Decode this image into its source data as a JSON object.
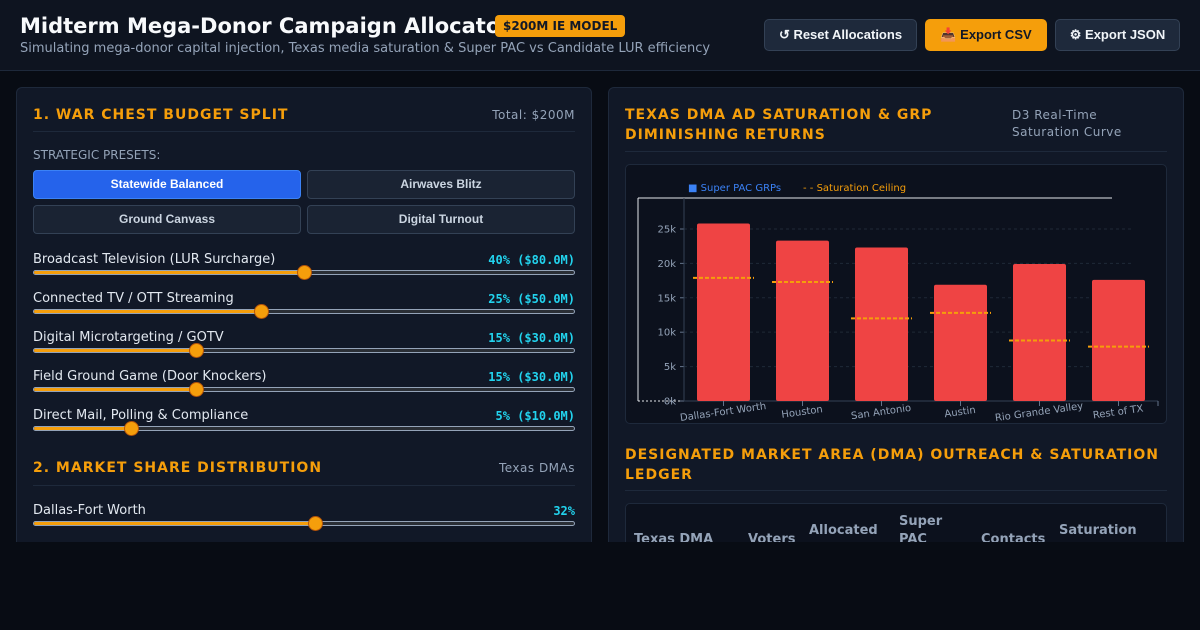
{
  "header": {
    "title": "Midterm Mega-Donor Campaign Allocator",
    "badge": "$200M IE MODEL",
    "subtitle": "Simulating mega-donor capital injection, Texas media saturation & Super PAC vs Candidate LUR efficiency",
    "buttons": {
      "reset": "↺ Reset Allocations",
      "export_csv": "📥 Export CSV",
      "export_json": "⚙ Export JSON"
    }
  },
  "budget": {
    "title": "1. WAR CHEST BUDGET SPLIT",
    "total": "Total: $200M",
    "presets_label": "STRATEGIC PRESETS:",
    "presets": [
      "Statewide Balanced",
      "Airwaves Blitz",
      "Ground Canvass",
      "Digital Turnout"
    ],
    "active_preset": "Statewide Balanced",
    "channels": [
      {
        "label": "Broadcast Television (LUR Surcharge)",
        "value": "40% ($80.0M)",
        "level": 0.5
      },
      {
        "label": "Connected TV / OTT Streaming",
        "value": "25% ($50.0M)",
        "level": 0.42
      },
      {
        "label": "Digital Microtargeting / GOTV",
        "value": "15% ($30.0M)",
        "level": 0.3
      },
      {
        "label": "Field Ground Game (Door Knockers)",
        "value": "15% ($30.0M)",
        "level": 0.3
      },
      {
        "label": "Direct Mail, Polling & Compliance",
        "value": "5% ($10.0M)",
        "level": 0.18
      }
    ]
  },
  "market_share": {
    "title": "2. MARKET SHARE DISTRIBUTION",
    "meta": "Texas DMAs",
    "markets": [
      {
        "label": "Dallas-Fort Worth",
        "value": "32%",
        "level": 0.52
      }
    ]
  },
  "saturation": {
    "title_line1": "TEXAS DMA AD SATURATION & GRP",
    "title_line2": "DIMINISHING RETURNS",
    "meta_line1": "D3 Real-Time",
    "meta_line2": "Saturation Curve"
  },
  "chart_data": {
    "type": "bar",
    "categories": [
      "Dallas-Fort Worth",
      "Houston",
      "San Antonio",
      "Austin",
      "Rio Grande Valley",
      "Rest of TX"
    ],
    "series": [
      {
        "name": "Super PAC GRPs",
        "values": [
          25800,
          23300,
          22300,
          16900,
          19900,
          17600
        ],
        "color": "#ef4444"
      },
      {
        "name": "Saturation Ceiling",
        "values": [
          17900,
          17300,
          12000,
          12800,
          8800,
          7900
        ],
        "color": "#f59e0b"
      }
    ],
    "legend": [
      "■ Super PAC GRPs",
      "- - Saturation Ceiling"
    ],
    "ytick_labels": [
      "0k",
      "5k",
      "10k",
      "15k",
      "20k",
      "25k"
    ],
    "ylim": [
      0,
      29500
    ],
    "grid": true,
    "legend_position": "top-left"
  },
  "ledger": {
    "title_line1": "DESIGNATED MARKET AREA (DMA) OUTREACH & SATURATION",
    "title_line2": "LEDGER",
    "columns": [
      [
        "Texas DMA"
      ],
      [
        "Voters"
      ],
      [
        "Allocated",
        "$$"
      ],
      [
        "Super",
        "PAC"
      ],
      [
        "Contacts"
      ],
      [
        "Saturation"
      ]
    ]
  }
}
